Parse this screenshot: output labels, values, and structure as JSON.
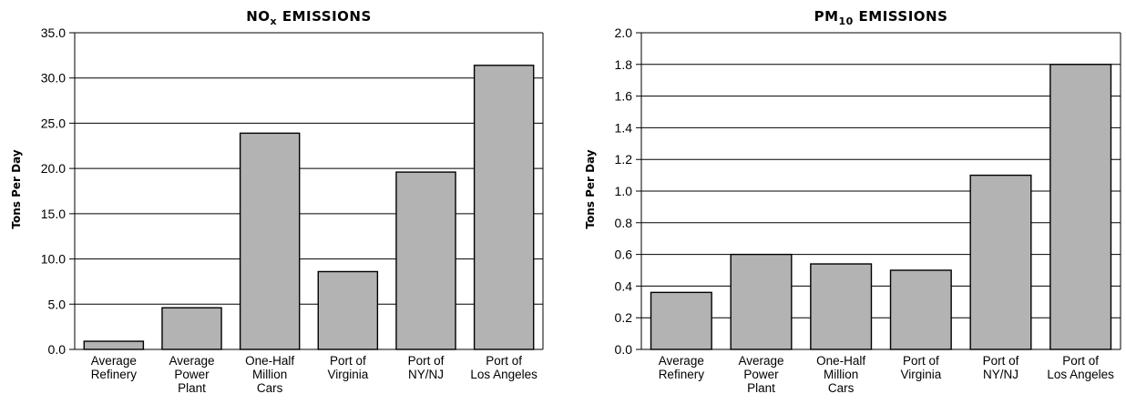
{
  "charts": [
    {
      "id": "nox",
      "title_main": "NO",
      "title_sub": "x",
      "title_rest": " EMISSIONS",
      "ylabel": "Tons Per Day",
      "tick_labels": [
        "0.0",
        "5.0",
        "10.0",
        "15.0",
        "20.0",
        "25.0",
        "30.0",
        "35.0"
      ],
      "categories": [
        [
          "Average",
          "Refinery"
        ],
        [
          "Average",
          "Power",
          "Plant"
        ],
        [
          "One-Half",
          "Million",
          "Cars"
        ],
        [
          "Port of",
          "Virginia"
        ],
        [
          "Port of",
          "NY/NJ"
        ],
        [
          "Port of",
          "Los Angeles"
        ]
      ]
    },
    {
      "id": "pm",
      "title_main": "PM",
      "title_sub": "10",
      "title_rest": " EMISSIONS",
      "ylabel": "Tons Per Day",
      "tick_labels": [
        "0.0",
        "0.2",
        "0.4",
        "0.6",
        "0.8",
        "1.0",
        "1.2",
        "1.4",
        "1.6",
        "1.8",
        "2.0"
      ],
      "categories": [
        [
          "Average",
          "Refinery"
        ],
        [
          "Average",
          "Power",
          "Plant"
        ],
        [
          "One-Half",
          "Million",
          "Cars"
        ],
        [
          "Port of",
          "Virginia"
        ],
        [
          "Port of",
          "NY/NJ"
        ],
        [
          "Port of",
          "Los Angeles"
        ]
      ]
    }
  ],
  "chart_data": [
    {
      "type": "bar",
      "title": "NOx EMISSIONS",
      "ylabel": "Tons Per Day",
      "xlabel": "",
      "categories": [
        "Average Refinery",
        "Average Power Plant",
        "One-Half Million Cars",
        "Port of Virginia",
        "Port of NY/NJ",
        "Port of Los Angeles"
      ],
      "values": [
        0.9,
        4.6,
        23.9,
        8.6,
        19.6,
        31.4
      ],
      "ylim": [
        0,
        35
      ],
      "yticks": [
        0,
        5,
        10,
        15,
        20,
        25,
        30,
        35
      ],
      "grid": true,
      "bar_color": "#b3b3b3"
    },
    {
      "type": "bar",
      "title": "PM10 EMISSIONS",
      "ylabel": "Tons Per Day",
      "xlabel": "",
      "categories": [
        "Average Refinery",
        "Average Power Plant",
        "One-Half Million Cars",
        "Port of Virginia",
        "Port of NY/NJ",
        "Port of Los Angeles"
      ],
      "values": [
        0.36,
        0.6,
        0.54,
        0.5,
        1.1,
        1.8
      ],
      "ylim": [
        0,
        2.0
      ],
      "yticks": [
        0,
        0.2,
        0.4,
        0.6,
        0.8,
        1.0,
        1.2,
        1.4,
        1.6,
        1.8,
        2.0
      ],
      "grid": true,
      "bar_color": "#b3b3b3"
    }
  ]
}
